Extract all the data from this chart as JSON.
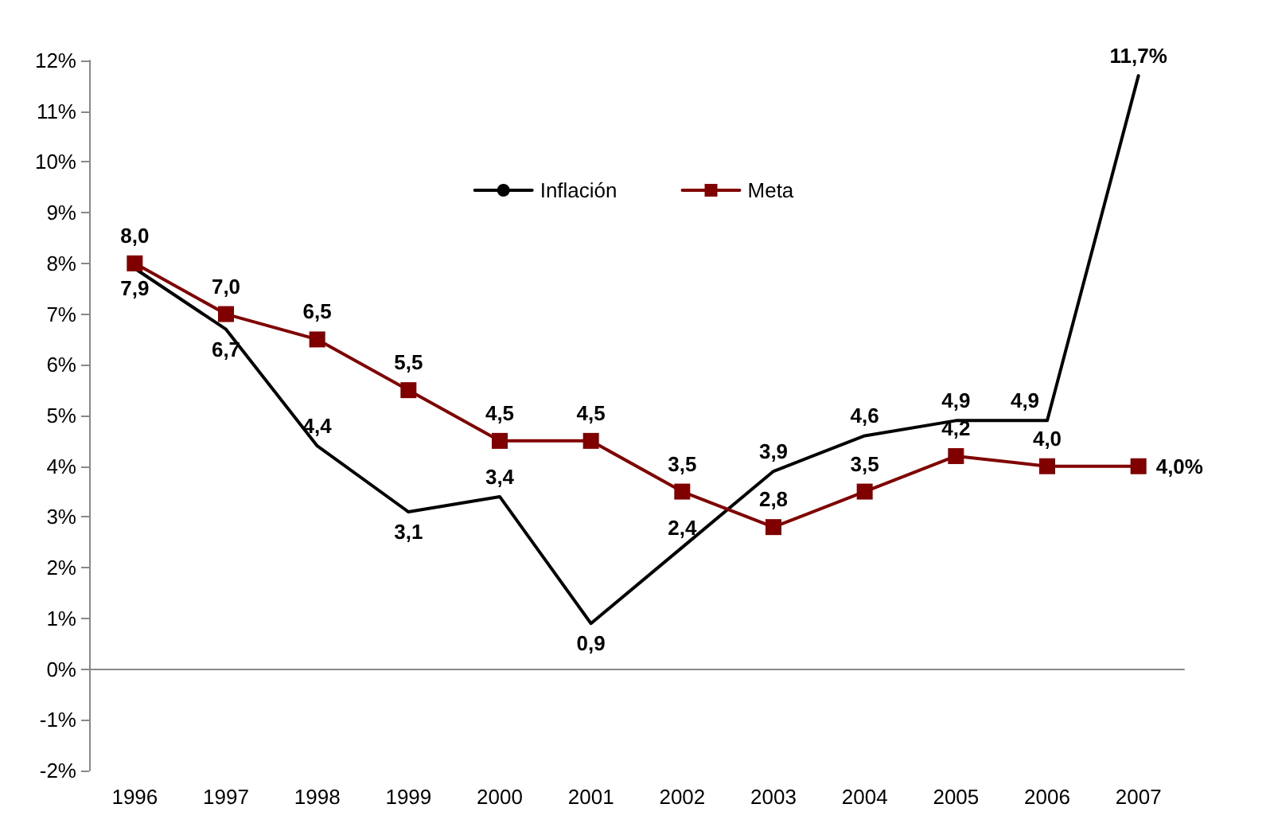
{
  "chart_data": {
    "type": "line",
    "categories": [
      "1996",
      "1997",
      "1998",
      "1999",
      "2000",
      "2001",
      "2002",
      "2003",
      "2004",
      "2005",
      "2006",
      "2007"
    ],
    "series": [
      {
        "name": "Inflación",
        "color": "#000000",
        "marker": "none",
        "values": [
          7.9,
          6.7,
          4.4,
          3.1,
          3.4,
          0.9,
          2.4,
          3.9,
          4.6,
          4.9,
          4.9,
          11.7
        ],
        "value_labels": [
          "7,9",
          "6,7",
          "4,4",
          "3,1",
          "3,4",
          "0,9",
          "2,4",
          "3,9",
          "4,6",
          "4,9",
          "4,9",
          "11,7%"
        ]
      },
      {
        "name": "Meta",
        "color": "#800000",
        "marker": "square",
        "values": [
          8.0,
          7.0,
          6.5,
          5.5,
          4.5,
          4.5,
          3.5,
          2.8,
          3.5,
          4.2,
          4.0,
          4.0
        ],
        "value_labels": [
          "8,0",
          "7,0",
          "6,5",
          "5,5",
          "4,5",
          "4,5",
          "3,5",
          "2,8",
          "3,5",
          "4,2",
          "4,0",
          "4,0%"
        ]
      }
    ],
    "ylim": [
      -2,
      12
    ],
    "yticks": [
      {
        "value": -2,
        "label": "-2%"
      },
      {
        "value": -1,
        "label": "-1%"
      },
      {
        "value": 0,
        "label": "0%"
      },
      {
        "value": 1,
        "label": "1%"
      },
      {
        "value": 2,
        "label": "2%"
      },
      {
        "value": 3,
        "label": "3%"
      },
      {
        "value": 4,
        "label": "4%"
      },
      {
        "value": 5,
        "label": "5%"
      },
      {
        "value": 6,
        "label": "6%"
      },
      {
        "value": 7,
        "label": "7%"
      },
      {
        "value": 8,
        "label": "8%"
      },
      {
        "value": 9,
        "label": "9%"
      },
      {
        "value": 10,
        "label": "10%"
      },
      {
        "value": 11,
        "label": "11%"
      },
      {
        "value": 12,
        "label": "12%"
      }
    ],
    "legend": "top",
    "line_style": "solid"
  }
}
